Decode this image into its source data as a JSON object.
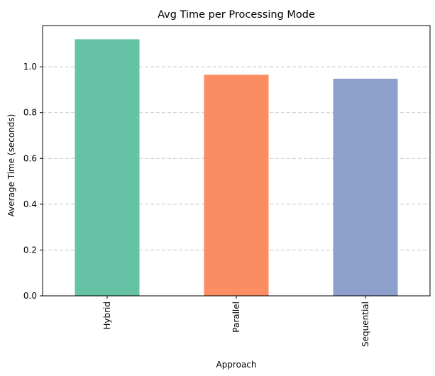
{
  "chart_data": {
    "type": "bar",
    "title": "Avg Time per Processing Mode",
    "xlabel": "Approach",
    "ylabel": "Average Time (seconds)",
    "categories": [
      "Hybrid",
      "Parallel",
      "Sequential"
    ],
    "values": [
      1.12,
      0.965,
      0.948
    ],
    "colors": [
      "#66c2a5",
      "#fc8d62",
      "#8da0cb"
    ],
    "ylim": [
      0,
      1.18
    ],
    "yticks": [
      0.0,
      0.2,
      0.4,
      0.6,
      0.8,
      1.0
    ],
    "ytick_labels": [
      "0.0",
      "0.2",
      "0.4",
      "0.6",
      "0.8",
      "1.0"
    ],
    "grid": "y-dashed",
    "legend": "none",
    "xtick_rotation": "vertical"
  }
}
